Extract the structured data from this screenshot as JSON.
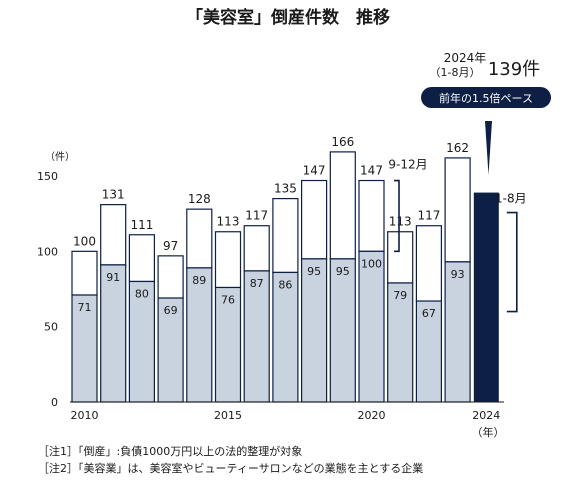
{
  "chart_data": {
    "type": "bar",
    "title": "「美容室」倒産件数　推移",
    "ylabel": "（件）",
    "xlabel": "（年）",
    "ylim": [
      0,
      150
    ],
    "yticks": [
      0,
      50,
      100,
      150
    ],
    "xtick_labels": [
      "2010",
      "2015",
      "2020",
      "2024"
    ],
    "categories": [
      "2010",
      "2011",
      "2012",
      "2013",
      "2014",
      "2015",
      "2016",
      "2017",
      "2018",
      "2019",
      "2020",
      "2021",
      "2022",
      "2023",
      "2024"
    ],
    "series": [
      {
        "name": "1-8月",
        "values": [
          71,
          91,
          80,
          69,
          89,
          76,
          87,
          86,
          95,
          95,
          100,
          79,
          67,
          93,
          139
        ]
      },
      {
        "name": "9-12月",
        "values": [
          29,
          40,
          31,
          28,
          39,
          37,
          30,
          49,
          52,
          71,
          47,
          34,
          50,
          69,
          null
        ]
      }
    ],
    "totals": [
      100,
      131,
      111,
      97,
      128,
      113,
      117,
      135,
      147,
      166,
      147,
      113,
      117,
      162,
      null
    ],
    "label_9_12": "9-12月",
    "label_1_8": "1-8月",
    "callout": {
      "year": "2024年",
      "period": "（1-8月）",
      "value": "139件",
      "badge": "前年の1.5倍ペース"
    },
    "notes": [
      "［注1］「倒産」:負債1000万円以上の法的整理が対象",
      "［注2］「美容業」は、美容室やビューティーサロンなどの業態を主とする企業"
    ],
    "colors": {
      "first_half": "#c9d3e0",
      "latest": "#0d1f45",
      "outline": "#0d1f45",
      "background": "#ffffff"
    }
  }
}
